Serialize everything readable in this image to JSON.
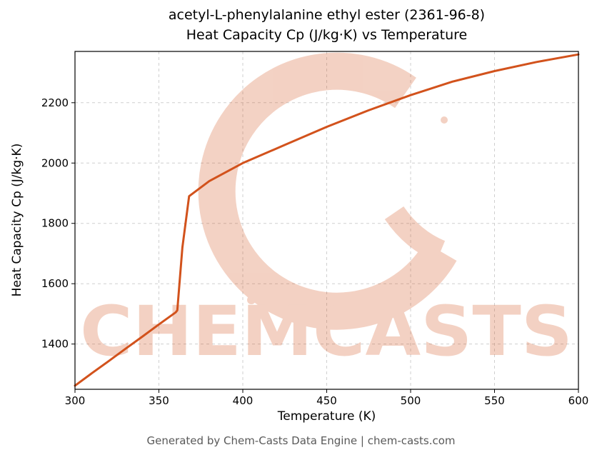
{
  "page": {
    "background": "#ffffff"
  },
  "chart_data": {
    "type": "line",
    "title": "acetyl-L-phenylalanine ethyl ester (2361-96-8)",
    "subtitle": "Heat Capacity Cp (J/kg·K) vs Temperature",
    "xlabel": "Temperature (K)",
    "ylabel": "Heat Capacity Cp (J/kg·K)",
    "xlim": [
      300,
      600
    ],
    "ylim": [
      1250,
      2370
    ],
    "xticks": [
      300,
      350,
      400,
      450,
      500,
      550,
      600
    ],
    "yticks": [
      1400,
      1600,
      1800,
      2000,
      2200
    ],
    "grid": true,
    "grid_style": "dashed",
    "line_color": "#d2521c",
    "line_width": 3,
    "series": [
      {
        "name": "Heat Capacity Cp",
        "x": [
          300,
          310,
          320,
          330,
          340,
          350,
          360,
          361,
          364,
          368,
          380,
          400,
          425,
          450,
          475,
          500,
          525,
          550,
          575,
          600
        ],
        "y": [
          1262,
          1303,
          1343,
          1384,
          1424,
          1465,
          1505,
          1512,
          1720,
          1890,
          1940,
          2000,
          2060,
          2120,
          2175,
          2225,
          2270,
          2305,
          2335,
          2360
        ]
      }
    ]
  },
  "watermark": {
    "text": "CHEMCASTS",
    "color": "#d2521c"
  },
  "footer": {
    "text": "Generated by Chem-Casts Data Engine | chem-casts.com"
  }
}
